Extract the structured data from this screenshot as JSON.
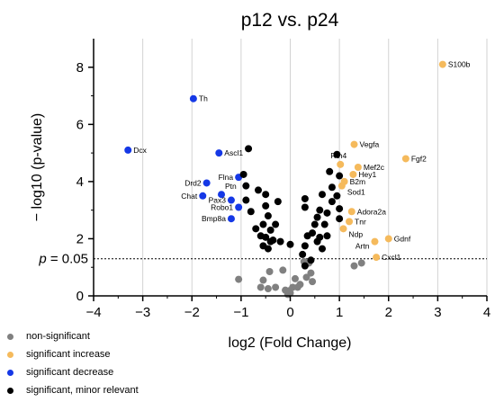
{
  "chart_data": {
    "type": "scatter",
    "title": "p12 vs. p24",
    "xlabel": "log2 (Fold Change)",
    "ylabel": "− log10 (p-value)",
    "xlim": [
      -4,
      4
    ],
    "ylim": [
      0,
      9
    ],
    "xticks": [
      "−4",
      "−3",
      "−2",
      "−1",
      "0",
      "1",
      "2",
      "3",
      "4"
    ],
    "yticks": [
      "0",
      "2",
      "4",
      "6",
      "8"
    ],
    "vertical_grid": true,
    "threshold": {
      "y": 1.3,
      "label_prefix": "p",
      "label_value": " = 0.05"
    },
    "series": [
      {
        "name": "non-significant",
        "color": "#808080",
        "points": [
          {
            "x": -1.05,
            "y": 0.58
          },
          {
            "x": -0.55,
            "y": 0.55
          },
          {
            "x": -0.42,
            "y": 0.85
          },
          {
            "x": -0.45,
            "y": 0.25
          },
          {
            "x": -0.6,
            "y": 0.3
          },
          {
            "x": -0.3,
            "y": 0.3
          },
          {
            "x": -0.15,
            "y": 0.9
          },
          {
            "x": -0.1,
            "y": 0.2
          },
          {
            "x": -0.05,
            "y": 0.05
          },
          {
            "x": 0.0,
            "y": 0.1
          },
          {
            "x": 0.05,
            "y": 0.3
          },
          {
            "x": 0.1,
            "y": 0.6
          },
          {
            "x": 0.15,
            "y": 0.3
          },
          {
            "x": 0.2,
            "y": 0.4
          },
          {
            "x": 0.28,
            "y": 1.2
          },
          {
            "x": 0.33,
            "y": 0.65
          },
          {
            "x": 0.38,
            "y": 1.15
          },
          {
            "x": 0.42,
            "y": 0.8
          },
          {
            "x": 0.45,
            "y": 0.5
          },
          {
            "x": 1.3,
            "y": 1.05
          },
          {
            "x": 1.45,
            "y": 1.15
          },
          {
            "x": -0.02,
            "y": 0.18
          }
        ]
      },
      {
        "name": "significant increase",
        "color": "#F5BA5C",
        "points": [
          {
            "x": 3.1,
            "y": 8.1,
            "label": "S100b"
          },
          {
            "x": 1.3,
            "y": 5.3,
            "label": "Vegfa"
          },
          {
            "x": 2.35,
            "y": 4.8,
            "label": "Fgf2"
          },
          {
            "x": 1.02,
            "y": 4.6,
            "label": "Rtn4"
          },
          {
            "x": 1.38,
            "y": 4.5,
            "label": "Mef2c"
          },
          {
            "x": 1.28,
            "y": 4.25,
            "label": "Hey1"
          },
          {
            "x": 1.1,
            "y": 4.0,
            "label": "B2m"
          },
          {
            "x": 1.05,
            "y": 3.85,
            "label": "Sod1"
          },
          {
            "x": 1.25,
            "y": 2.95,
            "label": "Adora2a"
          },
          {
            "x": 1.2,
            "y": 2.6,
            "label": "Tnr"
          },
          {
            "x": 1.08,
            "y": 2.35,
            "label": "Ndp"
          },
          {
            "x": 2.0,
            "y": 2.0,
            "label": "Gdnf"
          },
          {
            "x": 1.72,
            "y": 1.9,
            "label": "Artn"
          },
          {
            "x": 1.75,
            "y": 1.35,
            "label": "Cxcl1"
          }
        ]
      },
      {
        "name": "significant decrease",
        "color": "#1538E6",
        "points": [
          {
            "x": -1.97,
            "y": 6.9,
            "label": "Th"
          },
          {
            "x": -3.3,
            "y": 5.1,
            "label": "Dcx"
          },
          {
            "x": -1.45,
            "y": 5.0,
            "label": "Ascl1"
          },
          {
            "x": -1.05,
            "y": 4.15,
            "label": "Flna"
          },
          {
            "x": -1.7,
            "y": 3.95,
            "label": "Drd2"
          },
          {
            "x": -1.4,
            "y": 3.55,
            "label": "Ptn"
          },
          {
            "x": -1.78,
            "y": 3.5,
            "label": "Chat"
          },
          {
            "x": -1.2,
            "y": 3.35,
            "label": "Pax3"
          },
          {
            "x": -1.05,
            "y": 3.1,
            "label": "Robo1"
          },
          {
            "x": -1.2,
            "y": 2.7,
            "label": "Bmp8a"
          }
        ]
      },
      {
        "name": "significant, minor relevant",
        "color": "#000000",
        "points": [
          {
            "x": -0.85,
            "y": 5.15
          },
          {
            "x": -0.95,
            "y": 4.25
          },
          {
            "x": -0.9,
            "y": 3.85
          },
          {
            "x": -0.9,
            "y": 3.35
          },
          {
            "x": -0.65,
            "y": 3.7
          },
          {
            "x": -0.8,
            "y": 2.95
          },
          {
            "x": -0.55,
            "y": 2.5
          },
          {
            "x": -0.7,
            "y": 2.35
          },
          {
            "x": -0.5,
            "y": 3.15
          },
          {
            "x": -0.45,
            "y": 2.8
          },
          {
            "x": -0.5,
            "y": 2.05
          },
          {
            "x": -0.4,
            "y": 2.3
          },
          {
            "x": -0.35,
            "y": 1.95
          },
          {
            "x": -0.55,
            "y": 1.75
          },
          {
            "x": -0.45,
            "y": 1.65
          },
          {
            "x": -0.5,
            "y": 3.55
          },
          {
            "x": -0.6,
            "y": 2.1
          },
          {
            "x": -0.4,
            "y": 1.9
          },
          {
            "x": -0.25,
            "y": 3.3
          },
          {
            "x": -0.3,
            "y": 2.5
          },
          {
            "x": -0.2,
            "y": 1.9
          },
          {
            "x": 0.0,
            "y": 1.8
          },
          {
            "x": 0.3,
            "y": 3.4
          },
          {
            "x": 0.3,
            "y": 3.1
          },
          {
            "x": 0.35,
            "y": 2.1
          },
          {
            "x": 0.3,
            "y": 1.75
          },
          {
            "x": 0.45,
            "y": 2.2
          },
          {
            "x": 0.5,
            "y": 2.5
          },
          {
            "x": 0.55,
            "y": 2.75
          },
          {
            "x": 0.6,
            "y": 3.0
          },
          {
            "x": 0.55,
            "y": 1.9
          },
          {
            "x": 0.6,
            "y": 2.05
          },
          {
            "x": 0.65,
            "y": 3.55
          },
          {
            "x": 0.65,
            "y": 1.65
          },
          {
            "x": 0.7,
            "y": 2.5
          },
          {
            "x": 0.75,
            "y": 2.9
          },
          {
            "x": 0.8,
            "y": 4.35
          },
          {
            "x": 0.85,
            "y": 3.3
          },
          {
            "x": 0.95,
            "y": 4.95
          },
          {
            "x": 1.0,
            "y": 4.2
          },
          {
            "x": 0.95,
            "y": 3.5
          },
          {
            "x": 1.0,
            "y": 3.05
          },
          {
            "x": 0.75,
            "y": 2.1
          },
          {
            "x": 0.85,
            "y": 3.8
          },
          {
            "x": 1.0,
            "y": 2.7
          },
          {
            "x": 0.3,
            "y": 1.05
          },
          {
            "x": 0.42,
            "y": 1.25
          },
          {
            "x": 0.25,
            "y": 1.45
          }
        ]
      }
    ]
  }
}
